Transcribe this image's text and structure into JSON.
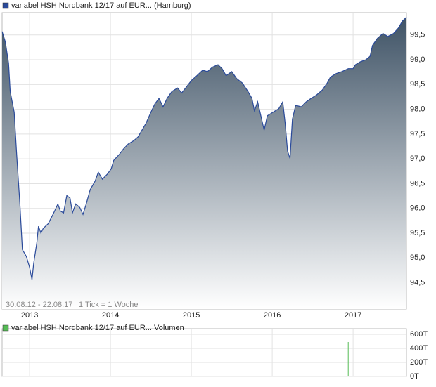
{
  "chart_data": [
    {
      "type": "area",
      "series": [
        {
          "name": "variabel HSH Nordbank 12/17 auf EUR... (Hamburg)",
          "color": "#2a4a9a",
          "values": [
            99.57,
            99.36,
            98.93,
            98.36,
            97.94,
            97.09,
            96.09,
            95.17,
            95.03,
            94.81,
            94.56,
            94.88,
            95.31,
            95.64,
            95.5,
            95.6,
            95.69,
            95.88,
            96.09,
            95.95,
            95.91,
            96.26,
            96.21,
            95.91,
            96.09,
            96.02,
            95.88,
            96.09,
            96.38,
            96.55,
            96.73,
            96.59,
            96.69,
            96.8,
            96.97,
            97.09,
            97.2,
            97.3,
            97.37,
            97.44,
            97.58,
            97.72,
            97.94,
            98.11,
            98.22,
            98.05,
            98.22,
            98.36,
            98.43,
            98.33,
            98.43,
            98.58,
            98.68,
            98.79,
            98.76,
            98.85,
            98.9,
            98.82,
            98.68,
            98.76,
            98.62,
            98.53,
            98.36,
            98.22,
            97.97,
            98.15,
            97.94,
            97.58,
            97.87,
            97.94,
            98.01,
            98.15,
            97.72,
            97.16,
            97.01,
            97.8,
            98.08,
            98.05,
            98.15,
            98.22,
            98.29,
            98.39,
            98.53,
            98.65,
            98.72,
            98.76,
            98.82,
            98.82,
            98.9,
            98.96,
            99.0,
            99.07,
            99.29,
            99.43,
            99.53,
            99.47,
            99.53,
            99.64,
            99.78,
            99.86
          ]
        }
      ],
      "x": [
        2012.66,
        2012.7,
        2012.74,
        2012.76,
        2012.81,
        2012.84,
        2012.88,
        2012.91,
        2012.96,
        2013.0,
        2013.03,
        2013.05,
        2013.09,
        2013.11,
        2013.14,
        2013.17,
        2013.23,
        2013.29,
        2013.35,
        2013.38,
        2013.42,
        2013.46,
        2013.5,
        2013.53,
        2013.57,
        2013.62,
        2013.66,
        2013.7,
        2013.75,
        2013.81,
        2013.85,
        2013.9,
        2013.96,
        2014.01,
        2014.04,
        2014.11,
        2014.16,
        2014.22,
        2014.29,
        2014.34,
        2014.39,
        2014.44,
        2014.5,
        2014.55,
        2014.6,
        2014.65,
        2014.7,
        2014.76,
        2014.83,
        2014.88,
        2014.93,
        2015.0,
        2015.07,
        2015.14,
        2015.2,
        2015.26,
        2015.33,
        2015.38,
        2015.43,
        2015.5,
        2015.56,
        2015.63,
        2015.7,
        2015.75,
        2015.78,
        2015.82,
        2015.85,
        2015.9,
        2015.94,
        2016.01,
        2016.08,
        2016.13,
        2016.16,
        2016.19,
        2016.22,
        2016.25,
        2016.29,
        2016.36,
        2016.42,
        2016.48,
        2016.55,
        2016.62,
        2016.68,
        2016.72,
        2016.79,
        2016.86,
        2016.94,
        2017.0,
        2017.03,
        2017.09,
        2017.16,
        2017.21,
        2017.24,
        2017.3,
        2017.37,
        2017.43,
        2017.5,
        2017.56,
        2017.61,
        2017.66
      ],
      "xlim": [
        2012.66,
        2017.66
      ],
      "xticks": [
        2013,
        2014,
        2015,
        2016,
        2017
      ],
      "ylim": [
        93.97,
        99.95
      ],
      "yticks": [
        {
          "value": 94.5,
          "label": "94,5"
        },
        {
          "value": 95.0,
          "label": "95,0"
        },
        {
          "value": 95.5,
          "label": "95,5"
        },
        {
          "value": 96.0,
          "label": "96,0"
        },
        {
          "value": 96.5,
          "label": "96,5"
        },
        {
          "value": 97.0,
          "label": "97,0"
        },
        {
          "value": 97.5,
          "label": "97,5"
        },
        {
          "value": 98.0,
          "label": "98,0"
        },
        {
          "value": 98.5,
          "label": "98,5"
        },
        {
          "value": 99.0,
          "label": "99,0"
        },
        {
          "value": 99.5,
          "label": "99,5"
        }
      ],
      "date_range": "30.08.12 - 22.08.17",
      "tick_note": "1 Tick = 1 Woche",
      "grid": true
    },
    {
      "type": "bar",
      "series": [
        {
          "name": "variabel HSH Nordbank 12/17 auf EUR... Volumen",
          "color": "#55bb55",
          "values": [
            490,
            10
          ]
        }
      ],
      "x": [
        2016.94,
        2017.0
      ],
      "xlim": [
        2012.66,
        2017.66
      ],
      "xticks": [
        2013,
        2014,
        2015,
        2016,
        2017
      ],
      "ylim": [
        0,
        680
      ],
      "yticks": [
        {
          "value": 0,
          "label": "0T"
        },
        {
          "value": 200,
          "label": "200T"
        },
        {
          "value": 400,
          "label": "400T"
        },
        {
          "value": 600,
          "label": "600T"
        }
      ],
      "grid": true
    }
  ]
}
